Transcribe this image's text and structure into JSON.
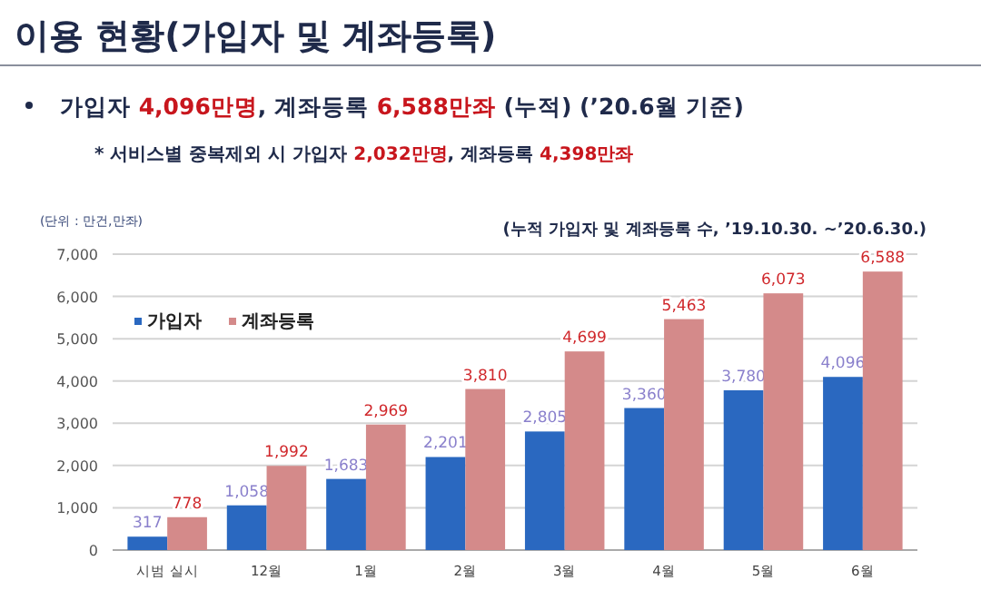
{
  "chart_data": {
    "type": "bar",
    "title": "이용 현황(가입자 및 계좌등록)",
    "subtitle": "가입자 4,096만명, 계좌등록 6,588만좌 (누적) (’20.6월 기준)",
    "annotations": [
      "* 서비스별 중복제외 시 가입자 2,032만명, 계좌등록 4,398만좌",
      "(단위 : 만건,만좌)",
      "(누적 가입자 및 계좌등록 수, ’19.10.30. ~’20.6.30.)"
    ],
    "categories": [
      "시범 실시",
      "12월",
      "1월",
      "2월",
      "3월",
      "4월",
      "5월",
      "6월"
    ],
    "series": [
      {
        "name": "가입자",
        "color": "#2a68c0",
        "values": [
          317,
          1058,
          1683,
          2201,
          2805,
          3360,
          3780,
          4096
        ],
        "value_labels": [
          "317",
          "1,058",
          "1,683",
          "2,201",
          "2,805",
          "3,360",
          "3,780",
          "4,096"
        ]
      },
      {
        "name": "계좌등록",
        "color": "#d48a8a",
        "values": [
          778,
          1992,
          2969,
          3810,
          4699,
          5463,
          6073,
          6588
        ],
        "value_labels": [
          "778",
          "1,992",
          "2,969",
          "3,810",
          "4,699",
          "5,463",
          "6,073",
          "6,588"
        ]
      }
    ],
    "ylim": [
      0,
      7000
    ],
    "yticks": [
      {
        "value": 0,
        "label": "0"
      },
      {
        "value": 1000,
        "label": "1,000"
      },
      {
        "value": 2000,
        "label": "2,000"
      },
      {
        "value": 3000,
        "label": "3,000"
      },
      {
        "value": 4000,
        "label": "4,000"
      },
      {
        "value": 5000,
        "label": "5,000"
      },
      {
        "value": 6000,
        "label": "6,000"
      },
      {
        "value": 7000,
        "label": "7,000"
      }
    ],
    "grid": "y",
    "legend": "top left"
  }
}
